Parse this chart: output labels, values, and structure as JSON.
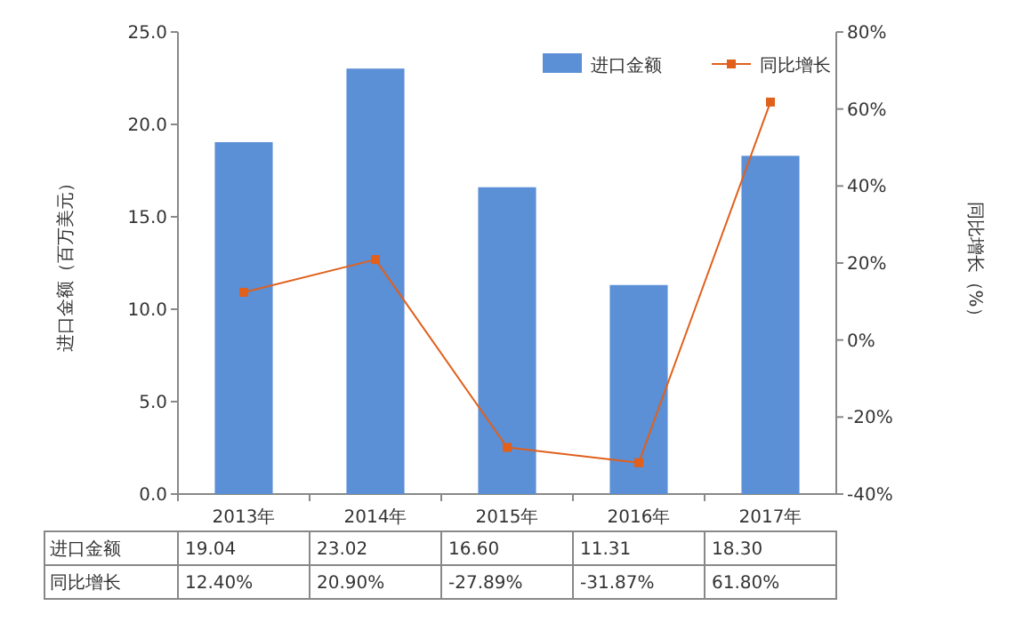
{
  "chart_data": {
    "type": "bar",
    "ylabel": "进口金额（百万美元）",
    "y2label": "同比增长（%）",
    "categories": [
      "2013年",
      "2014年",
      "2015年",
      "2016年",
      "2017年"
    ],
    "series": [
      {
        "name": "进口金额",
        "color": "#5b8fd6",
        "values": [
          19.04,
          23.02,
          16.6,
          11.31,
          18.3
        ],
        "value_labels": [
          "19.04",
          "23.02",
          "16.60",
          "11.31",
          "18.30"
        ]
      },
      {
        "name": "同比增长",
        "type": "line",
        "axis": "y2",
        "color": "#e0601c",
        "marker": "square",
        "values": [
          12.4,
          20.9,
          -27.89,
          -31.87,
          61.8
        ],
        "value_labels": [
          "12.40%",
          "20.90%",
          "-27.89%",
          "-31.87%",
          "61.80%"
        ]
      }
    ],
    "ylim": [
      0,
      25
    ],
    "yticks": [
      {
        "value": 0,
        "label": "0.0"
      },
      {
        "value": 5,
        "label": "5.0"
      },
      {
        "value": 10,
        "label": "10.0"
      },
      {
        "value": 15,
        "label": "15.0"
      },
      {
        "value": 20,
        "label": "20.0"
      },
      {
        "value": 25,
        "label": "25.0"
      }
    ],
    "y2lim": [
      -40,
      80
    ],
    "y2ticks": [
      {
        "value": -40,
        "label": "-40%"
      },
      {
        "value": -20,
        "label": "-20%"
      },
      {
        "value": 0,
        "label": "0%"
      },
      {
        "value": 20,
        "label": "20%"
      },
      {
        "value": 40,
        "label": "40%"
      },
      {
        "value": 60,
        "label": "60%"
      },
      {
        "value": 80,
        "label": "80%"
      }
    ],
    "legend": "top right"
  }
}
